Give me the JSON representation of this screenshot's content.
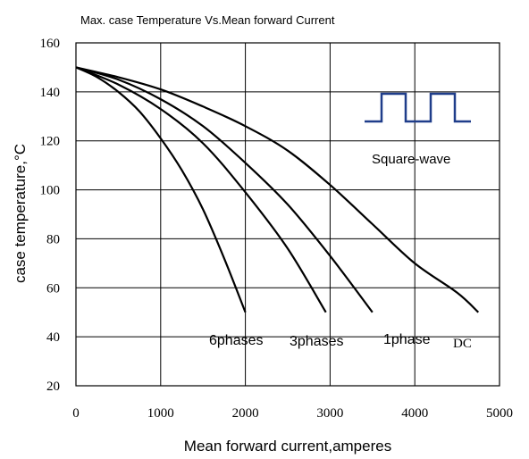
{
  "chart_data": {
    "type": "line",
    "title": "Max. case Temperature Vs.Mean forward Current",
    "xlabel": "Mean forward current,amperes",
    "ylabel": "case temperature,°C",
    "xlim": [
      0,
      5000
    ],
    "ylim": [
      20,
      160
    ],
    "xticks": [
      0,
      1000,
      2000,
      3000,
      4000,
      5000
    ],
    "yticks": [
      20,
      40,
      60,
      80,
      100,
      120,
      140,
      160
    ],
    "grid": true,
    "inset_label": "Square-wave",
    "series": [
      {
        "name": "6phases",
        "x": [
          0,
          250,
          500,
          750,
          1000,
          1250,
          1500,
          1750,
          2000
        ],
        "y": [
          150,
          146,
          140,
          132,
          121,
          108,
          92,
          72,
          50
        ]
      },
      {
        "name": "3phases",
        "x": [
          0,
          500,
          1000,
          1500,
          2000,
          2500,
          2950
        ],
        "y": [
          150,
          143,
          133,
          119,
          99,
          76,
          50
        ]
      },
      {
        "name": "1phase",
        "x": [
          0,
          500,
          1000,
          1500,
          2000,
          2500,
          3000,
          3500
        ],
        "y": [
          150,
          145,
          137,
          126,
          111,
          94,
          73,
          50
        ]
      },
      {
        "name": "DC",
        "x": [
          0,
          500,
          1000,
          1500,
          2000,
          2500,
          3000,
          3500,
          4000,
          4500,
          4750
        ],
        "y": [
          150,
          146,
          141,
          134,
          126,
          116,
          102,
          86,
          70,
          58,
          50
        ]
      }
    ]
  }
}
